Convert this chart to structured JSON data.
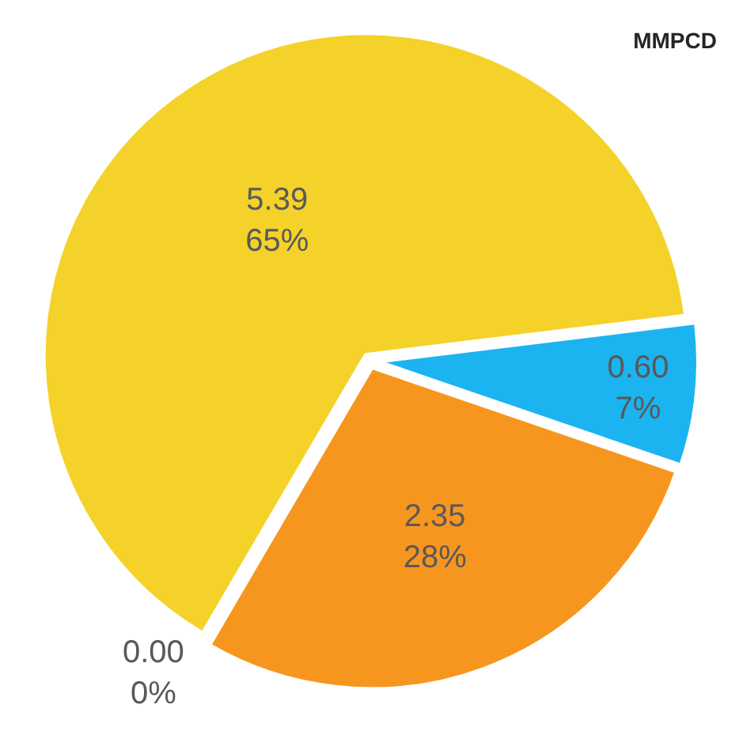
{
  "chart_data": {
    "type": "pie",
    "title": "MMPCD",
    "categories": [
      null,
      null,
      null,
      null
    ],
    "values": [
      0.6,
      2.35,
      0.0,
      5.39
    ],
    "colors": [
      "#1cb4f0",
      "#f7961f",
      "#a6a6a6",
      "#f4d22a"
    ],
    "value_labels": [
      "0.60\n7%",
      "2.35\n28%",
      "0.00\n0%",
      "5.39\n65%"
    ],
    "legend": false
  }
}
